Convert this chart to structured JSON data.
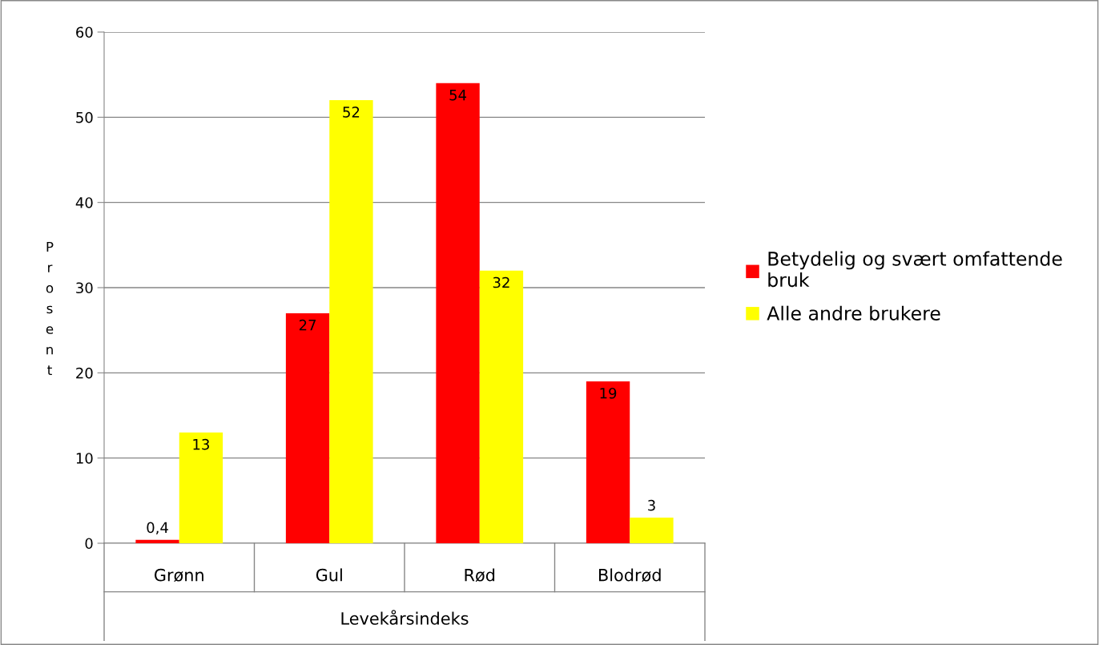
{
  "chart_data": {
    "type": "bar",
    "categories": [
      "Grønn",
      "Gul",
      "Rød",
      "Blodrød"
    ],
    "xlabel": "Levekårsindeks",
    "ylabel": "Prosent",
    "series": [
      {
        "name": "Betydelig og svært omfattende bruk",
        "color": "#ff0000",
        "values": [
          0.4,
          27,
          54,
          19
        ],
        "value_labels": [
          "0,4",
          "27",
          "54",
          "19"
        ]
      },
      {
        "name": "Alle andre brukere",
        "color": "#ffff00",
        "values": [
          13,
          52,
          32,
          3
        ],
        "value_labels": [
          "13",
          "52",
          "32",
          "3"
        ]
      }
    ],
    "ylim": [
      0,
      60
    ],
    "yticks": [
      0,
      10,
      20,
      30,
      40,
      50,
      60
    ],
    "grid": "y",
    "legend": "right"
  }
}
